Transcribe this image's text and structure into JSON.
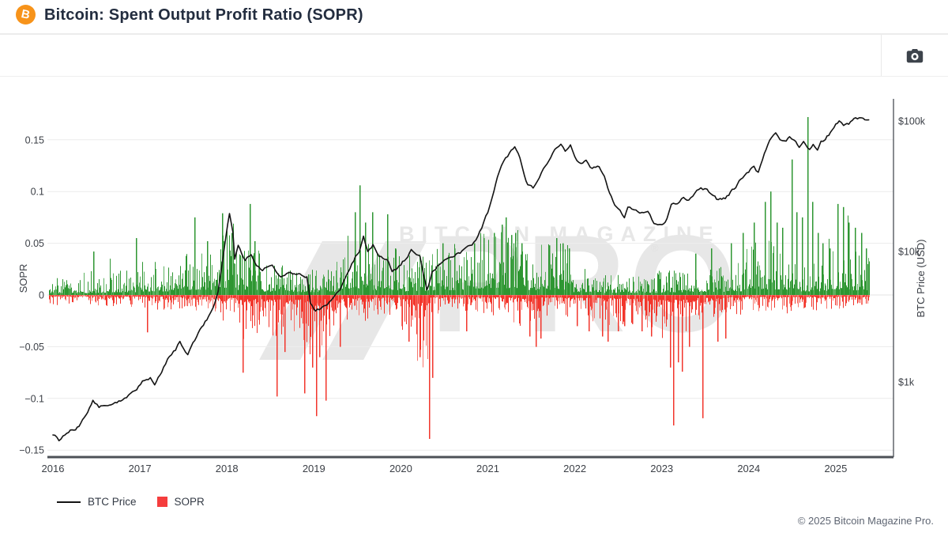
{
  "header": {
    "title": "Bitcoin: Spent Output Profit Ratio (SOPR)",
    "logo_icon": "bitcoin-circle",
    "logo_letter": "B"
  },
  "toolbar": {
    "camera_icon": "camera"
  },
  "footer": {
    "copyright": "© 2025 Bitcoin Magazine Pro."
  },
  "chart_data": {
    "type": "mixed",
    "title": "Bitcoin: Spent Output Profit Ratio (SOPR)",
    "x_axis": {
      "ticks": [
        2016,
        2017,
        2018,
        2019,
        2020,
        2021,
        2022,
        2023,
        2024,
        2025
      ],
      "range": [
        2015.94,
        2025.63
      ],
      "grid": false
    },
    "left_axis": {
      "label": "SOPR",
      "ticks": [
        0.15,
        0.1,
        0.05,
        0,
        -0.05,
        -0.1,
        -0.15
      ],
      "range": [
        -0.165,
        0.19
      ],
      "grid": true
    },
    "right_axis": {
      "label": "BTC Price (USD)",
      "scale": "log",
      "ticks": [
        {
          "label": "$100k",
          "value": 100000
        },
        {
          "label": "$10k",
          "value": 10000
        },
        {
          "label": "$1k",
          "value": 1000
        }
      ]
    },
    "legend": {
      "position": "bottom-left",
      "items": [
        {
          "label": "BTC Price",
          "swatch": "line",
          "color": "#141414"
        },
        {
          "label": "SOPR",
          "swatch": "square",
          "color": "#f53d3d"
        }
      ]
    },
    "watermark": {
      "line1": "BITCOIN MAGAZINE",
      "line2": "PRO",
      "registered": "®"
    },
    "colors": {
      "bar_positive": "#2e9632",
      "bar_positive_light": "#5cb160",
      "bar_negative": "#f2362c",
      "bar_negative_light": "#f8766d",
      "line": "#141414",
      "grid": "#ececec",
      "axis": "#555a60",
      "tick_text": "#3b3f46"
    },
    "series": [
      {
        "name": "BTC Price",
        "type": "line",
        "axis": "right",
        "color": "#141414",
        "points": [
          [
            2016.0,
            400
          ],
          [
            2016.07,
            360
          ],
          [
            2016.18,
            420
          ],
          [
            2016.3,
            455
          ],
          [
            2016.42,
            625
          ],
          [
            2016.46,
            735
          ],
          [
            2016.53,
            640
          ],
          [
            2016.65,
            660
          ],
          [
            2016.8,
            735
          ],
          [
            2016.94,
            850
          ],
          [
            2017.03,
            1000
          ],
          [
            2017.12,
            1075
          ],
          [
            2017.17,
            945
          ],
          [
            2017.25,
            1200
          ],
          [
            2017.34,
            1590
          ],
          [
            2017.41,
            1780
          ],
          [
            2017.46,
            2050
          ],
          [
            2017.5,
            1830
          ],
          [
            2017.55,
            1630
          ],
          [
            2017.63,
            2100
          ],
          [
            2017.71,
            2600
          ],
          [
            2017.77,
            3000
          ],
          [
            2017.84,
            3700
          ],
          [
            2017.9,
            4900
          ],
          [
            2017.94,
            7450
          ],
          [
            2017.99,
            13000
          ],
          [
            2018.03,
            19300
          ],
          [
            2018.07,
            14000
          ],
          [
            2018.09,
            8600
          ],
          [
            2018.13,
            11300
          ],
          [
            2018.21,
            8600
          ],
          [
            2018.28,
            9600
          ],
          [
            2018.34,
            8000
          ],
          [
            2018.41,
            7300
          ],
          [
            2018.52,
            7700
          ],
          [
            2018.62,
            6300
          ],
          [
            2018.71,
            6900
          ],
          [
            2018.82,
            6750
          ],
          [
            2018.92,
            6400
          ],
          [
            2018.96,
            3950
          ],
          [
            2019.02,
            3550
          ],
          [
            2019.13,
            3800
          ],
          [
            2019.2,
            4200
          ],
          [
            2019.3,
            5200
          ],
          [
            2019.39,
            6900
          ],
          [
            2019.46,
            8600
          ],
          [
            2019.52,
            10100
          ],
          [
            2019.57,
            13000
          ],
          [
            2019.62,
            10100
          ],
          [
            2019.68,
            11300
          ],
          [
            2019.75,
            9200
          ],
          [
            2019.84,
            8600
          ],
          [
            2019.9,
            7100
          ],
          [
            2019.98,
            7700
          ],
          [
            2020.04,
            8600
          ],
          [
            2020.12,
            10100
          ],
          [
            2020.22,
            9200
          ],
          [
            2020.3,
            5000
          ],
          [
            2020.36,
            6900
          ],
          [
            2020.48,
            8600
          ],
          [
            2020.57,
            9200
          ],
          [
            2020.66,
            9600
          ],
          [
            2020.75,
            10500
          ],
          [
            2020.84,
            11700
          ],
          [
            2020.93,
            15000
          ],
          [
            2021.0,
            19900
          ],
          [
            2021.07,
            29000
          ],
          [
            2021.11,
            37000
          ],
          [
            2021.18,
            49500
          ],
          [
            2021.25,
            57000
          ],
          [
            2021.31,
            63000
          ],
          [
            2021.37,
            53000
          ],
          [
            2021.4,
            43000
          ],
          [
            2021.46,
            32500
          ],
          [
            2021.52,
            30300
          ],
          [
            2021.57,
            34000
          ],
          [
            2021.64,
            43000
          ],
          [
            2021.7,
            49500
          ],
          [
            2021.77,
            61000
          ],
          [
            2021.84,
            67500
          ],
          [
            2021.89,
            59500
          ],
          [
            2021.95,
            65700
          ],
          [
            2022.0,
            53000
          ],
          [
            2022.07,
            46600
          ],
          [
            2022.13,
            49500
          ],
          [
            2022.2,
            43000
          ],
          [
            2022.28,
            44800
          ],
          [
            2022.34,
            37000
          ],
          [
            2022.4,
            28300
          ],
          [
            2022.46,
            22300
          ],
          [
            2022.52,
            20400
          ],
          [
            2022.57,
            18500
          ],
          [
            2022.61,
            22300
          ],
          [
            2022.68,
            20400
          ],
          [
            2022.77,
            19900
          ],
          [
            2022.84,
            20400
          ],
          [
            2022.91,
            16200
          ],
          [
            2023.0,
            15500
          ],
          [
            2023.06,
            17900
          ],
          [
            2023.11,
            22300
          ],
          [
            2023.18,
            23700
          ],
          [
            2023.25,
            26400
          ],
          [
            2023.31,
            24600
          ],
          [
            2023.38,
            28300
          ],
          [
            2023.45,
            30300
          ],
          [
            2023.52,
            29500
          ],
          [
            2023.59,
            27100
          ],
          [
            2023.65,
            24600
          ],
          [
            2023.73,
            25700
          ],
          [
            2023.79,
            28300
          ],
          [
            2023.85,
            31200
          ],
          [
            2023.93,
            37300
          ],
          [
            2024.0,
            41300
          ],
          [
            2024.06,
            44800
          ],
          [
            2024.11,
            40000
          ],
          [
            2024.18,
            57000
          ],
          [
            2024.24,
            70500
          ],
          [
            2024.31,
            78700
          ],
          [
            2024.36,
            73000
          ],
          [
            2024.43,
            69900
          ],
          [
            2024.47,
            75900
          ],
          [
            2024.52,
            73000
          ],
          [
            2024.58,
            63500
          ],
          [
            2024.63,
            69900
          ],
          [
            2024.7,
            59600
          ],
          [
            2024.74,
            65700
          ],
          [
            2024.79,
            61500
          ],
          [
            2024.83,
            69900
          ],
          [
            2024.88,
            73000
          ],
          [
            2024.94,
            81000
          ],
          [
            2025.0,
            96000
          ],
          [
            2025.04,
            99500
          ],
          [
            2025.09,
            93000
          ],
          [
            2025.15,
            96000
          ],
          [
            2025.21,
            102000
          ],
          [
            2025.29,
            107000
          ],
          [
            2025.38,
            102000
          ]
        ]
      },
      {
        "name": "SOPR",
        "type": "bar",
        "axis": "left",
        "positive_color": "#2e9632",
        "negative_color": "#f2362c",
        "envelope": [
          [
            2015.94,
            0.018,
            0.01
          ],
          [
            2016.6,
            0.024,
            0.012
          ],
          [
            2017.0,
            0.034,
            0.014
          ],
          [
            2017.5,
            0.05,
            0.016
          ],
          [
            2017.85,
            0.07,
            0.025
          ],
          [
            2018.1,
            0.048,
            0.038
          ],
          [
            2018.4,
            0.032,
            0.042
          ],
          [
            2018.85,
            0.028,
            0.06
          ],
          [
            2019.1,
            0.032,
            0.04
          ],
          [
            2019.25,
            0.06,
            0.026
          ],
          [
            2019.65,
            0.045,
            0.024
          ],
          [
            2020.0,
            0.035,
            0.04
          ],
          [
            2020.17,
            0.04,
            0.075
          ],
          [
            2020.34,
            0.045,
            0.02
          ],
          [
            2020.85,
            0.06,
            0.018
          ],
          [
            2021.0,
            0.065,
            0.02
          ],
          [
            2021.35,
            0.048,
            0.034
          ],
          [
            2021.6,
            0.05,
            0.022
          ],
          [
            2021.95,
            0.028,
            0.026
          ],
          [
            2022.3,
            0.02,
            0.03
          ],
          [
            2022.75,
            0.022,
            0.034
          ],
          [
            2023.0,
            0.026,
            0.045
          ],
          [
            2023.3,
            0.03,
            0.027
          ],
          [
            2023.75,
            0.035,
            0.02
          ],
          [
            2023.95,
            0.055,
            0.016
          ],
          [
            2024.3,
            0.05,
            0.018
          ],
          [
            2024.6,
            0.035,
            0.016
          ],
          [
            2024.9,
            0.055,
            0.014
          ],
          [
            2025.2,
            0.045,
            0.012
          ],
          [
            2025.45,
            0.04,
            0.012
          ]
        ],
        "spikes": [
          [
            2016.46,
            0.042
          ],
          [
            2016.95,
            0.055
          ],
          [
            2017.08,
            -0.036
          ],
          [
            2017.63,
            0.075
          ],
          [
            2017.77,
            0.052
          ],
          [
            2017.94,
            0.079
          ],
          [
            2018.05,
            0.06
          ],
          [
            2018.18,
            -0.075
          ],
          [
            2018.26,
            0.088
          ],
          [
            2018.32,
            0.052
          ],
          [
            2018.57,
            -0.098
          ],
          [
            2018.66,
            -0.055
          ],
          [
            2018.89,
            -0.095
          ],
          [
            2018.98,
            -0.07
          ],
          [
            2019.02,
            -0.117
          ],
          [
            2019.06,
            -0.06
          ],
          [
            2019.13,
            -0.102
          ],
          [
            2019.3,
            -0.05
          ],
          [
            2019.47,
            0.08
          ],
          [
            2019.52,
            0.106
          ],
          [
            2019.59,
            0.07
          ],
          [
            2019.67,
            0.08
          ],
          [
            2019.84,
            0.078
          ],
          [
            2019.93,
            0.045
          ],
          [
            2020.09,
            -0.045
          ],
          [
            2020.21,
            -0.06
          ],
          [
            2020.32,
            -0.139
          ],
          [
            2020.36,
            -0.08
          ],
          [
            2020.48,
            0.05
          ],
          [
            2020.61,
            0.045
          ],
          [
            2020.75,
            -0.035
          ],
          [
            2020.84,
            0.05
          ],
          [
            2020.95,
            0.055
          ],
          [
            2021.07,
            0.06
          ],
          [
            2021.16,
            0.068
          ],
          [
            2021.2,
            0.075
          ],
          [
            2021.27,
            0.058
          ],
          [
            2021.31,
            0.06
          ],
          [
            2021.39,
            0.05
          ],
          [
            2021.48,
            -0.04
          ],
          [
            2021.55,
            -0.05
          ],
          [
            2021.6,
            -0.042
          ],
          [
            2021.7,
            0.048
          ],
          [
            2021.79,
            0.055
          ],
          [
            2021.86,
            0.05
          ],
          [
            2021.93,
            0.045
          ],
          [
            2022.02,
            -0.03
          ],
          [
            2022.16,
            -0.035
          ],
          [
            2022.31,
            -0.04
          ],
          [
            2022.38,
            -0.045
          ],
          [
            2022.49,
            -0.035
          ],
          [
            2022.57,
            -0.03
          ],
          [
            2022.66,
            -0.028
          ],
          [
            2022.77,
            -0.035
          ],
          [
            2022.88,
            -0.04
          ],
          [
            2023.09,
            -0.07
          ],
          [
            2023.13,
            -0.126
          ],
          [
            2023.18,
            -0.065
          ],
          [
            2023.23,
            -0.074
          ],
          [
            2023.31,
            -0.05
          ],
          [
            2023.38,
            0.04
          ],
          [
            2023.47,
            -0.119
          ],
          [
            2023.57,
            0.045
          ],
          [
            2023.64,
            -0.045
          ],
          [
            2023.73,
            -0.042
          ],
          [
            2023.79,
            0.05
          ],
          [
            2023.93,
            0.06
          ],
          [
            2024.06,
            0.07
          ],
          [
            2024.18,
            0.09
          ],
          [
            2024.25,
            0.1
          ],
          [
            2024.32,
            0.07
          ],
          [
            2024.38,
            0.065
          ],
          [
            2024.49,
            0.131
          ],
          [
            2024.55,
            0.08
          ],
          [
            2024.61,
            0.075
          ],
          [
            2024.67,
            0.172
          ],
          [
            2024.73,
            0.09
          ],
          [
            2024.79,
            0.06
          ],
          [
            2024.85,
            0.05
          ],
          [
            2024.93,
            0.045
          ],
          [
            2025.02,
            0.088
          ],
          [
            2025.08,
            0.085
          ],
          [
            2025.15,
            0.07
          ],
          [
            2025.22,
            0.065
          ],
          [
            2025.29,
            0.06
          ],
          [
            2025.35,
            0.045
          ]
        ]
      }
    ]
  }
}
